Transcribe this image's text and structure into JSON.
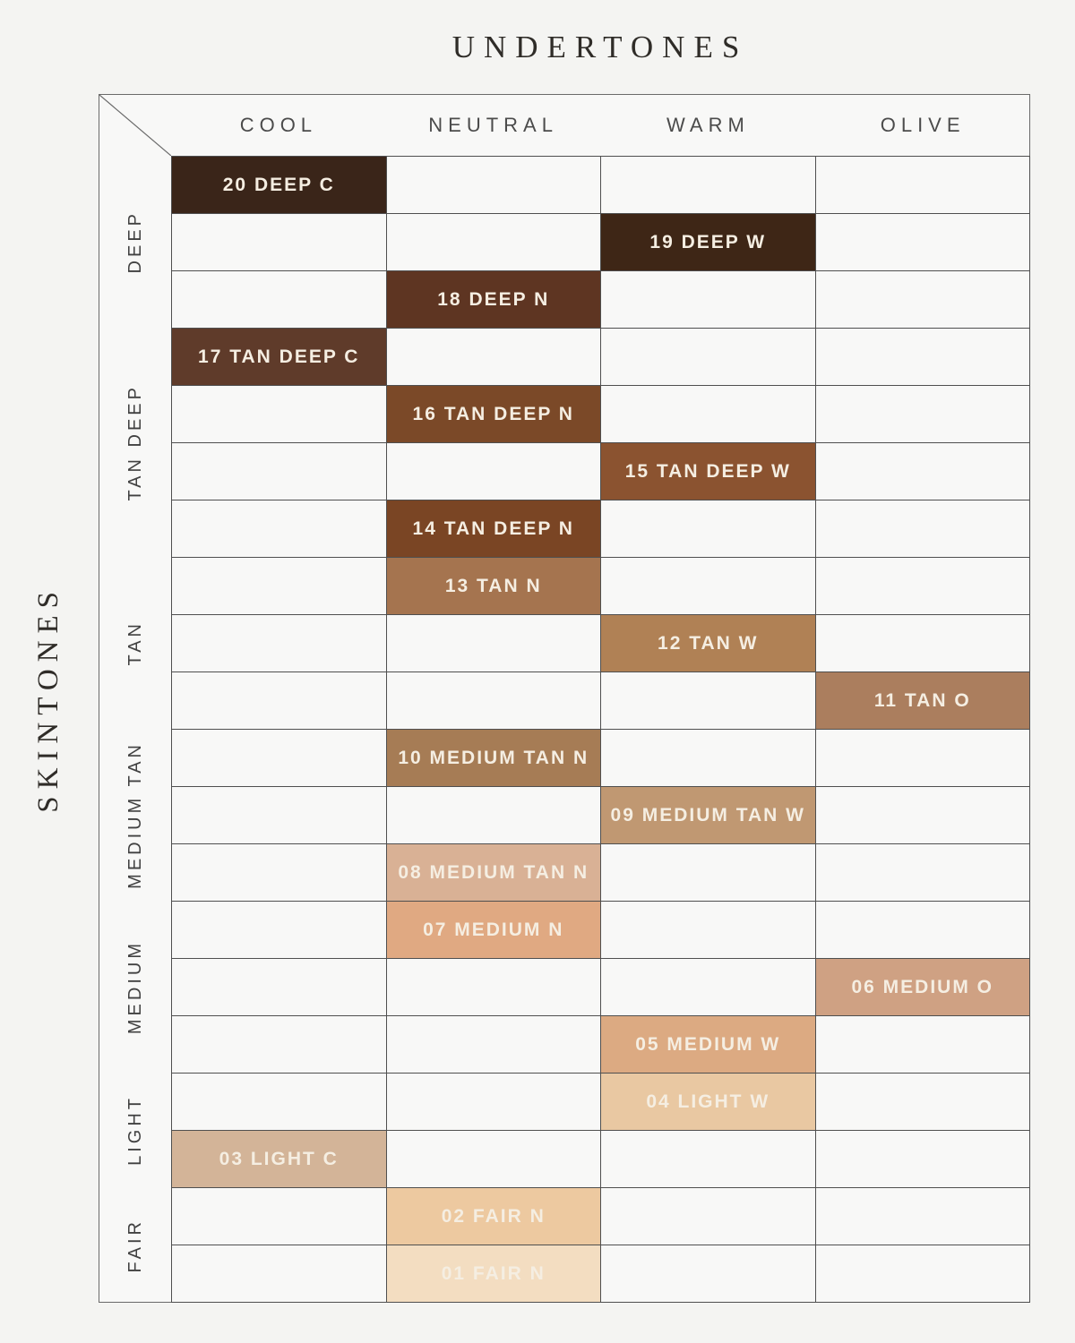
{
  "title": "UNDERTONES",
  "y_axis_title": "SKINTONES",
  "columns": [
    "COOL",
    "NEUTRAL",
    "WARM",
    "OLIVE"
  ],
  "skintone_groups": [
    {
      "label": "DEEP",
      "row_start": 0,
      "row_count": 3
    },
    {
      "label": "TAN DEEP",
      "row_start": 3,
      "row_count": 4
    },
    {
      "label": "TAN",
      "row_start": 7,
      "row_count": 3
    },
    {
      "label": "MEDIUM TAN",
      "row_start": 10,
      "row_count": 3
    },
    {
      "label": "MEDIUM",
      "row_start": 13,
      "row_count": 3
    },
    {
      "label": "LIGHT",
      "row_start": 16,
      "row_count": 2
    },
    {
      "label": "FAIR",
      "row_start": 18,
      "row_count": 2
    }
  ],
  "shades": [
    {
      "label": "20 DEEP C",
      "row": 0,
      "col": 0,
      "color": "#3a2519",
      "skintone": "DEEP",
      "undertone": "COOL"
    },
    {
      "label": "19 DEEP W",
      "row": 1,
      "col": 2,
      "color": "#3e2616",
      "skintone": "DEEP",
      "undertone": "WARM"
    },
    {
      "label": "18 DEEP N",
      "row": 2,
      "col": 1,
      "color": "#5e3522",
      "skintone": "DEEP",
      "undertone": "NEUTRAL"
    },
    {
      "label": "17 TAN DEEP C",
      "row": 3,
      "col": 0,
      "color": "#5f3b2a",
      "skintone": "TAN DEEP",
      "undertone": "COOL"
    },
    {
      "label": "16 TAN DEEP N",
      "row": 4,
      "col": 1,
      "color": "#7b4928",
      "skintone": "TAN DEEP",
      "undertone": "NEUTRAL"
    },
    {
      "label": "15 TAN DEEP W",
      "row": 5,
      "col": 2,
      "color": "#8b5330",
      "skintone": "TAN DEEP",
      "undertone": "WARM"
    },
    {
      "label": "14 TAN DEEP N",
      "row": 6,
      "col": 1,
      "color": "#7a4524",
      "skintone": "TAN DEEP",
      "undertone": "NEUTRAL"
    },
    {
      "label": "13 TAN N",
      "row": 7,
      "col": 1,
      "color": "#a5744f",
      "skintone": "TAN",
      "undertone": "NEUTRAL"
    },
    {
      "label": "12 TAN W",
      "row": 8,
      "col": 2,
      "color": "#b08155",
      "skintone": "TAN",
      "undertone": "WARM"
    },
    {
      "label": "11 TAN O",
      "row": 9,
      "col": 3,
      "color": "#ab7e5e",
      "skintone": "TAN",
      "undertone": "OLIVE"
    },
    {
      "label": "10 MEDIUM TAN N",
      "row": 10,
      "col": 1,
      "color": "#a67c55",
      "skintone": "MEDIUM TAN",
      "undertone": "NEUTRAL"
    },
    {
      "label": "09 MEDIUM TAN W",
      "row": 11,
      "col": 2,
      "color": "#c09872",
      "skintone": "MEDIUM TAN",
      "undertone": "WARM"
    },
    {
      "label": "08 MEDIUM TAN N",
      "row": 12,
      "col": 1,
      "color": "#d9b195",
      "skintone": "MEDIUM TAN",
      "undertone": "NEUTRAL"
    },
    {
      "label": "07 MEDIUM N",
      "row": 13,
      "col": 1,
      "color": "#e0a982",
      "skintone": "MEDIUM",
      "undertone": "NEUTRAL"
    },
    {
      "label": "06 MEDIUM O",
      "row": 14,
      "col": 3,
      "color": "#cfa183",
      "skintone": "MEDIUM",
      "undertone": "OLIVE"
    },
    {
      "label": "05 MEDIUM W",
      "row": 15,
      "col": 2,
      "color": "#dcaa82",
      "skintone": "MEDIUM",
      "undertone": "WARM"
    },
    {
      "label": "04 LIGHT W",
      "row": 16,
      "col": 2,
      "color": "#e9c8a2",
      "skintone": "LIGHT",
      "undertone": "WARM"
    },
    {
      "label": "03 LIGHT C",
      "row": 17,
      "col": 0,
      "color": "#d3b498",
      "skintone": "LIGHT",
      "undertone": "COOL"
    },
    {
      "label": "02 FAIR N",
      "row": 18,
      "col": 1,
      "color": "#edc9a0",
      "skintone": "FAIR",
      "undertone": "NEUTRAL"
    },
    {
      "label": "01 FAIR N",
      "row": 19,
      "col": 1,
      "color": "#f3ddc1",
      "skintone": "FAIR",
      "undertone": "NEUTRAL"
    }
  ],
  "chart_data": {
    "type": "heatmap",
    "title": "UNDERTONES",
    "xlabel": "UNDERTONES",
    "ylabel": "SKINTONES",
    "x_categories": [
      "COOL",
      "NEUTRAL",
      "WARM",
      "OLIVE"
    ],
    "y_categories": [
      "DEEP",
      "TAN DEEP",
      "TAN",
      "MEDIUM TAN",
      "MEDIUM",
      "LIGHT",
      "FAIR"
    ],
    "grid": "on",
    "cells": [
      {
        "shade": "20 DEEP C",
        "skintone": "DEEP",
        "undertone": "COOL",
        "color": "#3a2519"
      },
      {
        "shade": "19 DEEP W",
        "skintone": "DEEP",
        "undertone": "WARM",
        "color": "#3e2616"
      },
      {
        "shade": "18 DEEP N",
        "skintone": "DEEP",
        "undertone": "NEUTRAL",
        "color": "#5e3522"
      },
      {
        "shade": "17 TAN DEEP C",
        "skintone": "TAN DEEP",
        "undertone": "COOL",
        "color": "#5f3b2a"
      },
      {
        "shade": "16 TAN DEEP N",
        "skintone": "TAN DEEP",
        "undertone": "NEUTRAL",
        "color": "#7b4928"
      },
      {
        "shade": "15 TAN DEEP W",
        "skintone": "TAN DEEP",
        "undertone": "WARM",
        "color": "#8b5330"
      },
      {
        "shade": "14 TAN DEEP N",
        "skintone": "TAN DEEP",
        "undertone": "NEUTRAL",
        "color": "#7a4524"
      },
      {
        "shade": "13 TAN N",
        "skintone": "TAN",
        "undertone": "NEUTRAL",
        "color": "#a5744f"
      },
      {
        "shade": "12 TAN W",
        "skintone": "TAN",
        "undertone": "WARM",
        "color": "#b08155"
      },
      {
        "shade": "11 TAN O",
        "skintone": "TAN",
        "undertone": "OLIVE",
        "color": "#ab7e5e"
      },
      {
        "shade": "10 MEDIUM TAN N",
        "skintone": "MEDIUM TAN",
        "undertone": "NEUTRAL",
        "color": "#a67c55"
      },
      {
        "shade": "09 MEDIUM TAN W",
        "skintone": "MEDIUM TAN",
        "undertone": "WARM",
        "color": "#c09872"
      },
      {
        "shade": "08 MEDIUM TAN N",
        "skintone": "MEDIUM TAN",
        "undertone": "NEUTRAL",
        "color": "#d9b195"
      },
      {
        "shade": "07 MEDIUM N",
        "skintone": "MEDIUM",
        "undertone": "NEUTRAL",
        "color": "#e0a982"
      },
      {
        "shade": "06 MEDIUM O",
        "skintone": "MEDIUM",
        "undertone": "OLIVE",
        "color": "#cfa183"
      },
      {
        "shade": "05 MEDIUM W",
        "skintone": "MEDIUM",
        "undertone": "WARM",
        "color": "#dcaa82"
      },
      {
        "shade": "04 LIGHT W",
        "skintone": "LIGHT",
        "undertone": "WARM",
        "color": "#e9c8a2"
      },
      {
        "shade": "03 LIGHT C",
        "skintone": "LIGHT",
        "undertone": "COOL",
        "color": "#d3b498"
      },
      {
        "shade": "02 FAIR N",
        "skintone": "FAIR",
        "undertone": "NEUTRAL",
        "color": "#edc9a0"
      },
      {
        "shade": "01 FAIR N",
        "skintone": "FAIR",
        "undertone": "NEUTRAL",
        "color": "#f3ddc1"
      }
    ]
  }
}
